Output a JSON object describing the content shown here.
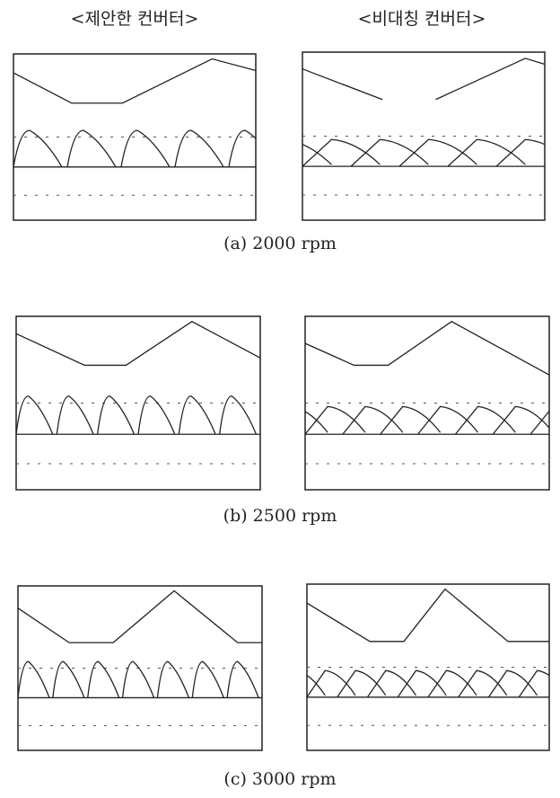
{
  "headers": [
    "<제안한 컨버터>",
    "<비대칭 컨버터>"
  ],
  "captions": [
    "(a) 2000 rpm",
    "(b) 2500 rpm",
    "(c) 3000 rpm"
  ]
}
